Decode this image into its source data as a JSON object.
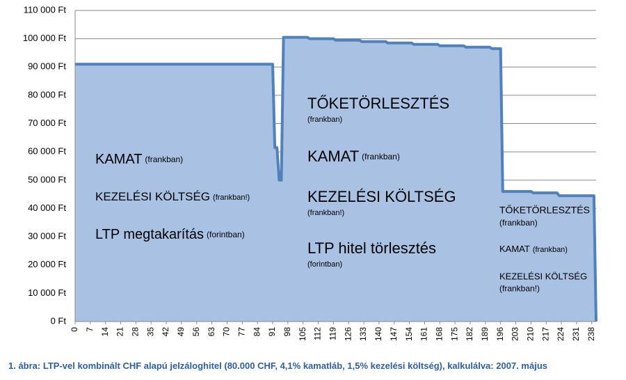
{
  "chart_data": {
    "type": "area",
    "caption": "1. ábra: LTP-vel kombinált CHF alapú jelzáloghitel (80.000 CHF, 4,1% kamatláb, 1,5% kezelési költség), kalkulálva: 2007. május",
    "x": [
      0,
      91,
      92,
      93,
      94,
      95,
      96,
      107,
      108,
      119,
      120,
      131,
      132,
      143,
      144,
      155,
      156,
      167,
      168,
      179,
      180,
      191,
      192,
      196,
      197,
      210,
      211,
      222,
      223,
      239,
      240
    ],
    "values": [
      91000,
      91000,
      61500,
      61500,
      50000,
      50000,
      100500,
      100500,
      100000,
      100000,
      99500,
      99500,
      99000,
      99000,
      98500,
      98500,
      98000,
      98000,
      97500,
      97500,
      97000,
      97000,
      96500,
      96500,
      46000,
      46000,
      45500,
      45500,
      44500,
      44500,
      0
    ],
    "color": "#4f81bd",
    "fill": "#a9c1e2",
    "xlim": [
      0,
      240
    ],
    "ylim": [
      0,
      110000
    ],
    "xticks": [
      0,
      7,
      14,
      21,
      28,
      35,
      42,
      49,
      56,
      63,
      70,
      77,
      84,
      91,
      98,
      105,
      112,
      119,
      126,
      133,
      140,
      147,
      154,
      161,
      168,
      175,
      182,
      189,
      196,
      203,
      210,
      217,
      224,
      231,
      238
    ],
    "yticks": [
      {
        "value": 0,
        "label": "0 Ft"
      },
      {
        "value": 10000,
        "label": "10 000 Ft"
      },
      {
        "value": 20000,
        "label": "20 000 Ft"
      },
      {
        "value": 30000,
        "label": "30 000 Ft"
      },
      {
        "value": 40000,
        "label": "40 000 Ft"
      },
      {
        "value": 50000,
        "label": "50 000 Ft"
      },
      {
        "value": 60000,
        "label": "60 000 Ft"
      },
      {
        "value": 70000,
        "label": "70 000 Ft"
      },
      {
        "value": 80000,
        "label": "80 000 Ft"
      },
      {
        "value": 90000,
        "label": "90 000 Ft"
      },
      {
        "value": 100000,
        "label": "100 000 Ft"
      },
      {
        "value": 110000,
        "label": "110 000 Ft"
      }
    ],
    "grid": true,
    "annotations": [
      {
        "text": "KAMAT",
        "note": "(frankban)"
      },
      {
        "text": "KEZELÉSI KÖLTSÉG",
        "note": "(frankban!)"
      },
      {
        "text": "LTP megtakarítás",
        "note": "(forintban)"
      },
      {
        "text": "TŐKETÖRLESZTÉS",
        "note": "(frankban)"
      },
      {
        "text": "KAMAT",
        "note": "(frankban)"
      },
      {
        "text": "KEZELÉSI KÖLTSÉG",
        "note": "(frankban!)"
      },
      {
        "text": "LTP hitel törlesztés",
        "note": "(forintban)"
      },
      {
        "text": "TŐKETÖRLESZTÉS",
        "note": "(frankban)"
      },
      {
        "text": "KAMAT",
        "note": "(frankban)"
      },
      {
        "text": "KEZELÉSI KÖLTSÉG",
        "note": "(frankban!)"
      }
    ]
  }
}
